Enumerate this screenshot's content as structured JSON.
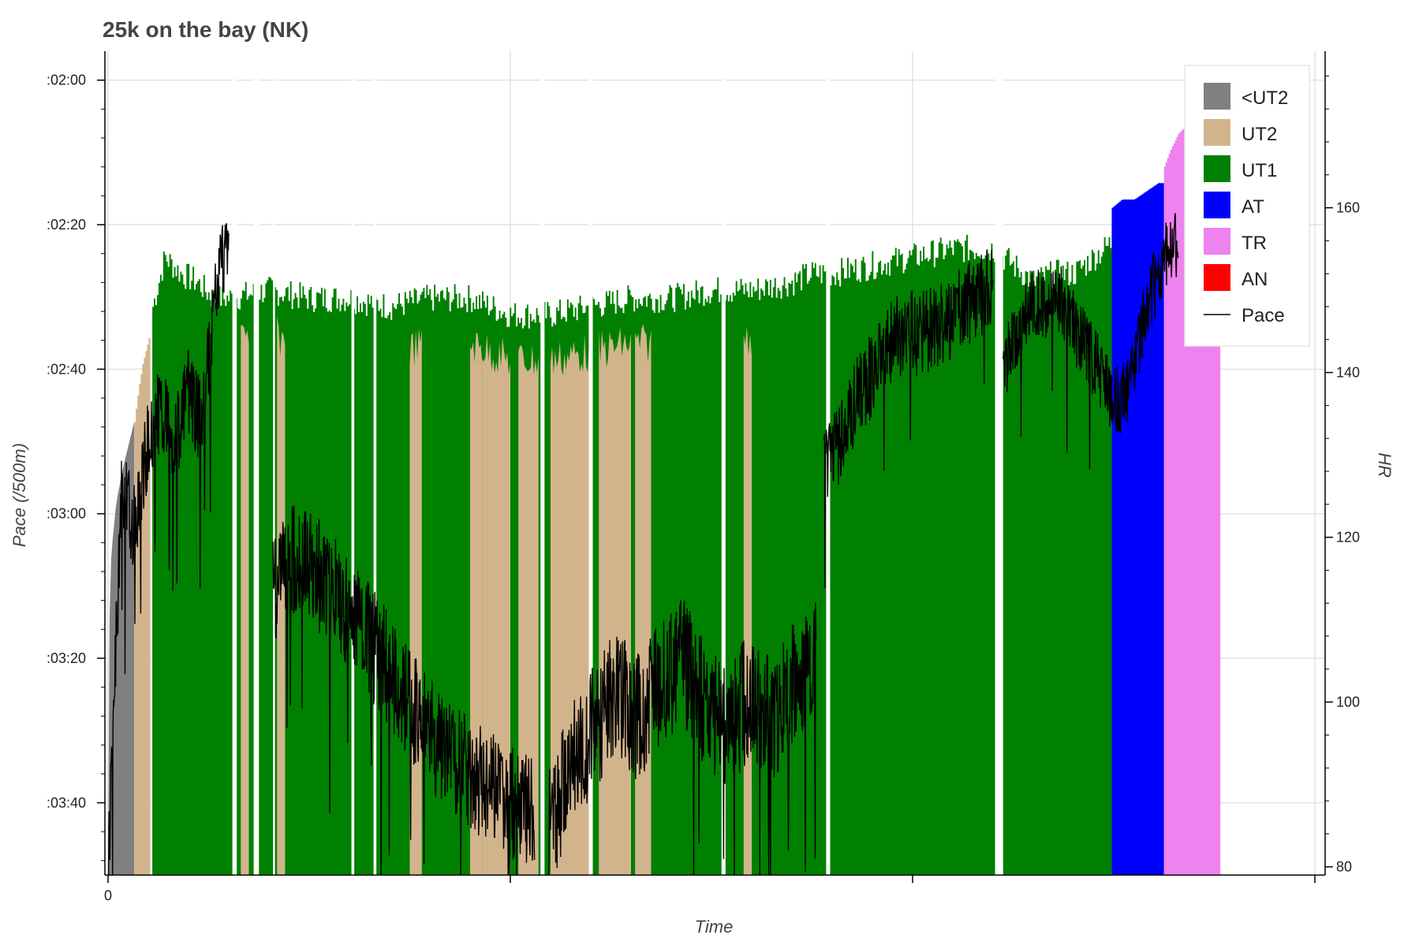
{
  "chart_data": {
    "type": "area",
    "title": "25k on the bay (NK)",
    "xlabel": "Time",
    "ylabel_left": "Pace (/500m)",
    "ylabel_right": "HR",
    "x_ticks": [
      {
        "value": 0,
        "label": "0"
      },
      {
        "value": 1,
        "label": ""
      },
      {
        "value": 2,
        "label": ""
      },
      {
        "value": 3,
        "label": ""
      }
    ],
    "xlim": [
      0,
      3.0
    ],
    "pace_axis": {
      "ylim_seconds": [
        230,
        116
      ],
      "ticks": [
        {
          "value": 120,
          "label": ":02:00"
        },
        {
          "value": 140,
          "label": ":02:20"
        },
        {
          "value": 160,
          "label": ":02:40"
        },
        {
          "value": 180,
          "label": ":03:00"
        },
        {
          "value": 200,
          "label": ":03:20"
        },
        {
          "value": 220,
          "label": ":03:40"
        }
      ]
    },
    "hr_axis": {
      "ylim": [
        79,
        179
      ],
      "ticks": [
        {
          "value": 80,
          "label": "80"
        },
        {
          "value": 100,
          "label": "100"
        },
        {
          "value": 120,
          "label": "120"
        },
        {
          "value": 140,
          "label": "140"
        },
        {
          "value": 160,
          "label": "160"
        }
      ]
    },
    "grid": true,
    "legend_position": "top-right",
    "legend": [
      {
        "name": "<UT2",
        "color": "#808080",
        "kind": "box"
      },
      {
        "name": "UT2",
        "color": "#d2b48c",
        "kind": "box"
      },
      {
        "name": "UT1",
        "color": "#008000",
        "kind": "box"
      },
      {
        "name": "AT",
        "color": "#0000ff",
        "kind": "box"
      },
      {
        "name": "TR",
        "color": "#ee82ee",
        "kind": "box"
      },
      {
        "name": "AN",
        "color": "#ff0000",
        "kind": "box"
      },
      {
        "name": "Pace",
        "color": "#000000",
        "kind": "line"
      }
    ],
    "hr_zone_series": [
      {
        "zone": "<UT2",
        "color": "#808080",
        "points": [
          [
            0.0,
            79
          ],
          [
            0.002,
            107
          ],
          [
            0.008,
            118
          ],
          [
            0.02,
            124
          ],
          [
            0.035,
            128
          ],
          [
            0.05,
            131
          ],
          [
            0.065,
            134
          ]
        ]
      },
      {
        "zone": "UT2",
        "color": "#d2b48c",
        "points": [
          [
            0.065,
            134
          ],
          [
            0.075,
            138
          ],
          [
            0.085,
            141
          ],
          [
            0.095,
            143
          ],
          [
            0.105,
            145
          ]
        ]
      },
      {
        "zone": "UT1",
        "color": "#008000",
        "points": [
          [
            0.11,
            148
          ],
          [
            0.14,
            154
          ],
          [
            0.18,
            152
          ],
          [
            0.22,
            151
          ],
          [
            0.26,
            149
          ],
          [
            0.3,
            149
          ],
          [
            0.4,
            150
          ],
          [
            0.5,
            149
          ],
          [
            0.6,
            149
          ],
          [
            0.7,
            148
          ],
          [
            0.8,
            149
          ],
          [
            0.9,
            149
          ],
          [
            1.0,
            147
          ],
          [
            1.1,
            147
          ],
          [
            1.2,
            148
          ],
          [
            1.3,
            149
          ],
          [
            1.4,
            149
          ],
          [
            1.5,
            150
          ],
          [
            1.6,
            150
          ],
          [
            1.7,
            151
          ],
          [
            1.75,
            152
          ],
          [
            1.8,
            152
          ],
          [
            1.9,
            153
          ],
          [
            2.0,
            154
          ],
          [
            2.1,
            155
          ],
          [
            2.15,
            155
          ],
          [
            2.2,
            155
          ],
          [
            2.25,
            153
          ],
          [
            2.3,
            151
          ],
          [
            2.35,
            152
          ],
          [
            2.4,
            152
          ],
          [
            2.45,
            154
          ],
          [
            2.5,
            156
          ],
          [
            2.495,
            156
          ]
        ]
      },
      {
        "zone": "AT",
        "color": "#0000ff",
        "points": [
          [
            2.495,
            160
          ],
          [
            2.52,
            161
          ],
          [
            2.55,
            161
          ],
          [
            2.58,
            162
          ],
          [
            2.61,
            163
          ],
          [
            2.625,
            163
          ]
        ]
      },
      {
        "zone": "TR",
        "color": "#ee82ee",
        "points": [
          [
            2.625,
            165
          ],
          [
            2.64,
            167
          ],
          [
            2.66,
            169
          ],
          [
            2.68,
            170
          ],
          [
            2.7,
            170
          ],
          [
            2.72,
            170
          ],
          [
            2.74,
            170
          ],
          [
            2.765,
            170
          ]
        ]
      }
    ],
    "hr_gaps": [
      [
        0.309,
        0.32
      ],
      [
        0.362,
        0.375
      ],
      [
        0.41,
        0.415
      ],
      [
        0.605,
        0.612
      ],
      [
        0.66,
        0.667
      ],
      [
        1.075,
        1.085
      ],
      [
        1.195,
        1.205
      ],
      [
        1.525,
        1.535
      ],
      [
        1.785,
        1.795
      ],
      [
        2.205,
        2.225
      ]
    ],
    "tan_overlays": [
      [
        0.33,
        0.35
      ],
      [
        0.42,
        0.44
      ],
      [
        0.75,
        0.78
      ],
      [
        0.9,
        0.93
      ],
      [
        0.93,
        1.0
      ],
      [
        1.02,
        1.07
      ],
      [
        1.1,
        1.2
      ],
      [
        1.22,
        1.3
      ],
      [
        1.31,
        1.35
      ],
      [
        1.58,
        1.6
      ]
    ],
    "pace_series": {
      "name": "Pace",
      "color": "#000000",
      "segments": [
        {
          "x": [
            0.0,
            0.3
          ],
          "pace": [
            230,
            177,
            182,
            170,
            165,
            170,
            163,
            168,
            150,
            140
          ],
          "noise": 6
        },
        {
          "x": [
            0.41,
            1.06
          ],
          "pace": [
            190,
            186,
            188,
            192,
            196,
            200,
            205,
            210,
            213,
            216,
            218,
            220,
            222
          ],
          "noise": 8
        },
        {
          "x": [
            1.095,
            1.76
          ],
          "pace": [
            224,
            215,
            210,
            205,
            208,
            204,
            200,
            206,
            210,
            205,
            208,
            204,
            200
          ],
          "noise": 9
        },
        {
          "x": [
            1.78,
            2.2
          ],
          "pace": [
            175,
            170,
            164,
            160,
            156,
            155,
            155,
            154,
            152,
            150,
            148
          ],
          "noise": 6
        },
        {
          "x": [
            2.225,
            2.66
          ],
          "pace": [
            160,
            155,
            150,
            152,
            150,
            155,
            158,
            162,
            165,
            160,
            150,
            145,
            142
          ],
          "noise": 5
        }
      ]
    }
  }
}
